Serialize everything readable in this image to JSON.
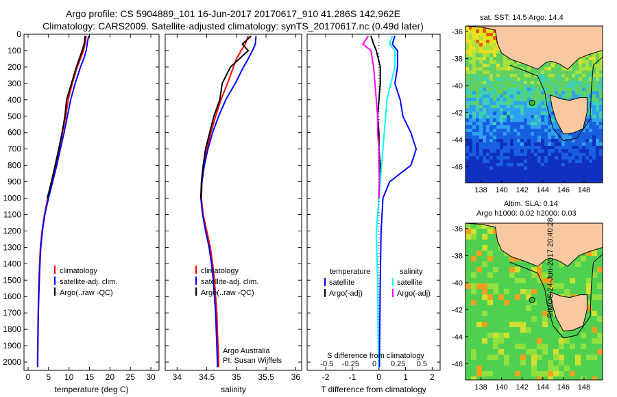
{
  "title_line1": "Argo profile: CS 5904889_101 16-Jun-2017 20170617_910 41.286S 142.962E",
  "title_line2": "Climatology: CARS2009. Satellite-adjusted climatology: synTS_20170617.nc (0.49d later)",
  "colors": {
    "climatology": "#ff0000",
    "satellite": "#0000ff",
    "argo": "#000000",
    "sal_sat": "#00ffff",
    "sal_argo": "#ff00ff",
    "land": "#f8c9a0"
  },
  "chart_data": [
    {
      "type": "line",
      "xlabel": "temperature (deg C)",
      "ylim": [
        2050,
        0
      ],
      "xlim": [
        -1,
        32
      ],
      "xticks": [
        0,
        5,
        10,
        15,
        20,
        25,
        30
      ],
      "yticks": [
        0,
        100,
        200,
        300,
        400,
        500,
        600,
        700,
        800,
        900,
        1000,
        1100,
        1200,
        1300,
        1400,
        1500,
        1600,
        1700,
        1800,
        1900,
        2000
      ],
      "legend": [
        "climatology",
        "satellite-adj. clim.",
        "Argo(..raw -QC)"
      ],
      "series": [
        {
          "name": "climatology",
          "color": "#ff0000",
          "y": [
            10,
            50,
            100,
            150,
            200,
            300,
            400,
            500,
            600,
            700,
            800,
            900,
            1000,
            1100,
            1200,
            1300,
            1400,
            1500,
            1600,
            1700,
            1800,
            1900,
            2000,
            2030
          ],
          "x": [
            14.2,
            14.0,
            13.5,
            12.8,
            12.0,
            10.8,
            9.8,
            9.2,
            8.4,
            7.6,
            6.7,
            5.8,
            4.8,
            4.0,
            3.4,
            3.0,
            2.8,
            2.65,
            2.55,
            2.45,
            2.4,
            2.35,
            2.3,
            2.3
          ]
        },
        {
          "name": "satellite-adj. clim.",
          "color": "#0000ff",
          "y": [
            10,
            50,
            100,
            150,
            200,
            300,
            400,
            500,
            600,
            700,
            800,
            900,
            1000,
            1100,
            1200,
            1300,
            1400,
            1500,
            1600,
            1700,
            1800,
            1900,
            2000,
            2030
          ],
          "x": [
            14.8,
            14.5,
            14.2,
            13.6,
            12.8,
            11.5,
            10.4,
            9.6,
            8.8,
            7.9,
            7.0,
            6.0,
            5.0,
            4.1,
            3.5,
            3.1,
            2.9,
            2.75,
            2.62,
            2.52,
            2.45,
            2.4,
            2.35,
            2.35
          ]
        },
        {
          "name": "Argo(..raw -QC)",
          "color": "#000000",
          "y": [
            10,
            50,
            100,
            150,
            200,
            300,
            400,
            500,
            600,
            700,
            800,
            900,
            1000
          ],
          "x": [
            13.9,
            13.8,
            13.2,
            12.5,
            11.8,
            10.6,
            9.4,
            9.0,
            8.3,
            7.5,
            6.6,
            5.7,
            4.7
          ]
        }
      ]
    },
    {
      "type": "line",
      "xlabel": "salinity",
      "ylim": [
        2050,
        0
      ],
      "xlim": [
        33.8,
        36.1
      ],
      "xticks": [
        34,
        34.5,
        35,
        35.5,
        36
      ],
      "xticklabels": [
        "34",
        "34.5",
        "35",
        "35.5",
        "36"
      ],
      "legend": [
        "climatology",
        "satellite-adj. clim.",
        "Argo(..raw -QC)"
      ],
      "annotation": [
        "Argo Australia",
        "PI: Susan Wijffels"
      ],
      "series": [
        {
          "name": "climatology",
          "color": "#ff0000",
          "y": [
            10,
            60,
            100,
            150,
            200,
            300,
            400,
            500,
            600,
            700,
            800,
            900,
            1000,
            1100,
            1200,
            1300,
            1400,
            1500,
            1600,
            1700,
            1800,
            1900,
            2000,
            2030
          ],
          "x": [
            35.2,
            35.15,
            35.08,
            35.0,
            34.95,
            34.85,
            34.74,
            34.65,
            34.57,
            34.5,
            34.45,
            34.42,
            34.41,
            34.44,
            34.5,
            34.56,
            34.6,
            34.63,
            34.65,
            34.67,
            34.68,
            34.69,
            34.7,
            34.7
          ]
        },
        {
          "name": "satellite-adj. clim.",
          "color": "#0000ff",
          "y": [
            10,
            60,
            100,
            150,
            200,
            300,
            400,
            500,
            600,
            700,
            800,
            900,
            1000,
            1100,
            1200,
            1300,
            1400,
            1500,
            1600,
            1700,
            1800,
            1900,
            2000,
            2030
          ],
          "x": [
            35.33,
            35.32,
            35.27,
            35.2,
            35.12,
            34.98,
            34.82,
            34.7,
            34.6,
            34.52,
            34.46,
            34.42,
            34.4,
            34.43,
            34.48,
            34.54,
            34.58,
            34.61,
            34.63,
            34.65,
            34.66,
            34.67,
            34.68,
            34.68
          ]
        },
        {
          "name": "Argo(..raw -QC)",
          "color": "#000000",
          "y": [
            10,
            60,
            100,
            150,
            200,
            300,
            400,
            500,
            600,
            700,
            800,
            900,
            1000
          ],
          "x": [
            35.25,
            35.1,
            35.2,
            35.05,
            34.9,
            34.76,
            34.72,
            34.62,
            34.55,
            34.48,
            34.44,
            34.41,
            34.4
          ]
        }
      ]
    },
    {
      "type": "line",
      "xlabel": "T difference from climatology",
      "xlabel_top": "S difference from climatology",
      "ylim": [
        2050,
        0
      ],
      "xlim": [
        -2.7,
        2.3
      ],
      "xticks": [
        -2,
        -1,
        0,
        1,
        2
      ],
      "xticks_top": [
        -0.5,
        -0.25,
        0,
        0.25,
        0.5
      ],
      "legend_col1_title": "temperature",
      "legend_col2_title": "salinity",
      "legend_col1": [
        "satellite",
        "Argo(-adj)"
      ],
      "legend_col2": [
        "satellite",
        "Argo(-adj)"
      ],
      "series": [
        {
          "name": "satellite",
          "color": "#0000ff",
          "y": [
            10,
            60,
            100,
            200,
            300,
            400,
            500,
            600,
            700,
            800,
            900,
            1000,
            1200,
            1500,
            2000,
            2030
          ],
          "x": [
            0.6,
            0.5,
            0.7,
            0.7,
            0.6,
            0.8,
            0.9,
            1.2,
            1.4,
            1.2,
            0.4,
            0.15,
            0.08,
            0.05,
            0.02,
            0.02
          ]
        },
        {
          "name": "Argo(-adj)",
          "color": "#000000",
          "y": [
            10,
            60,
            100,
            200,
            300,
            400,
            500,
            600,
            700,
            800,
            900,
            1000
          ],
          "x": [
            -0.3,
            -0.2,
            -0.1,
            0.05,
            0.05,
            0.0,
            -0.05,
            0.0,
            0.0,
            0.05,
            0.02,
            0.0
          ]
        },
        {
          "name": "satellite",
          "color": "#00ffff",
          "y": [
            10,
            60,
            100,
            200,
            300,
            400,
            500,
            600,
            700,
            800,
            900,
            1000,
            1200,
            1500,
            2000,
            2030
          ],
          "x": [
            0.5,
            0.4,
            0.6,
            0.6,
            0.45,
            0.3,
            0.25,
            0.2,
            0.15,
            0.1,
            0.05,
            0.0,
            -0.1,
            -0.05,
            -0.02,
            -0.02
          ]
        },
        {
          "name": "Argo(-adj)",
          "color": "#ff00ff",
          "y": [
            10,
            60,
            100,
            200,
            300,
            400,
            500,
            600,
            700,
            800,
            900,
            1000
          ],
          "x": [
            -0.4,
            -0.6,
            -0.3,
            -0.2,
            -0.15,
            -0.1,
            -0.05,
            -0.05,
            0.0,
            0.0,
            0.02,
            0.0
          ]
        }
      ]
    },
    {
      "type": "heatmap",
      "title": "sat. SST: 14.5  Argo: 14.4",
      "xticks": [
        138,
        140,
        142,
        144,
        146,
        148
      ],
      "yticks": [
        -36,
        -38,
        -40,
        -42,
        -44,
        -46
      ],
      "xlim": [
        136.5,
        149.8
      ],
      "ylim": [
        -47.2,
        -35.6
      ],
      "marker": {
        "lon": 142.962,
        "lat": -41.286
      }
    },
    {
      "type": "heatmap",
      "title_line1": "Altim. SLA: 0.14",
      "title_line2": "Argo h1000: 0.02 h2000: 0.03",
      "xticks": [
        138,
        140,
        142,
        144,
        146,
        148
      ],
      "yticks": [
        -36,
        -38,
        -40,
        -42,
        -44,
        -46
      ],
      "xlim": [
        136.5,
        149.8
      ],
      "ylim": [
        -47.2,
        -35.6
      ],
      "marker": {
        "lon": 142.962,
        "lat": -41.286
      }
    }
  ],
  "sidebar_stamp": "©IMOS 24-Jun-2017 20:40:28"
}
